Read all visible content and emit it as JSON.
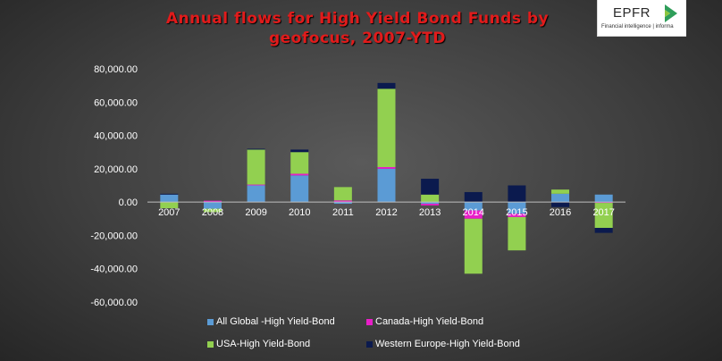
{
  "title": "Annual flows for High Yield Bond Funds by geofocus, 2007-YTD",
  "logo": {
    "name": "EPFR",
    "subtitle": "Financial intelligence | informa"
  },
  "chart_data": {
    "type": "bar",
    "stacked": true,
    "title": "Annual flows for High Yield Bond Funds by geofocus, 2007-YTD",
    "categories": [
      "2007",
      "2008",
      "2009",
      "2010",
      "2011",
      "2012",
      "2013",
      "2014",
      "2015",
      "2016",
      "2017"
    ],
    "ylim": [
      -60000,
      80000
    ],
    "yticks": [
      80000,
      60000,
      40000,
      20000,
      0,
      -20000,
      -40000,
      -60000
    ],
    "ytick_labels": [
      "80,000.00",
      "60,000.00",
      "40,000.00",
      "20,000.00",
      "0.00",
      "-20,000.00",
      "-40,000.00",
      "-60,000.00"
    ],
    "grid": false,
    "legend_position": "bottom",
    "series": [
      {
        "name": "All Global -High Yield-Bond",
        "color": "#5b9bd5",
        "values": [
          4500,
          -4000,
          10000,
          16000,
          -1000,
          20000,
          -1000,
          -5000,
          -7000,
          5000,
          4500
        ]
      },
      {
        "name": "Canada-High Yield-Bond",
        "color": "#e81ec8",
        "values": [
          -200,
          800,
          500,
          1000,
          1000,
          1000,
          -1000,
          -5000,
          -2000,
          0,
          -500
        ]
      },
      {
        "name": "USA-High Yield-Bond",
        "color": "#92d050",
        "values": [
          -3500,
          -2000,
          21000,
          13000,
          8000,
          47000,
          4500,
          -33000,
          -20000,
          2500,
          -15000
        ]
      },
      {
        "name": "Western Europe-High Yield-Bond",
        "color": "#0b1a4e",
        "values": [
          500,
          0,
          500,
          1500,
          0,
          3500,
          9500,
          6000,
          10000,
          -3000,
          -3000
        ]
      }
    ]
  }
}
